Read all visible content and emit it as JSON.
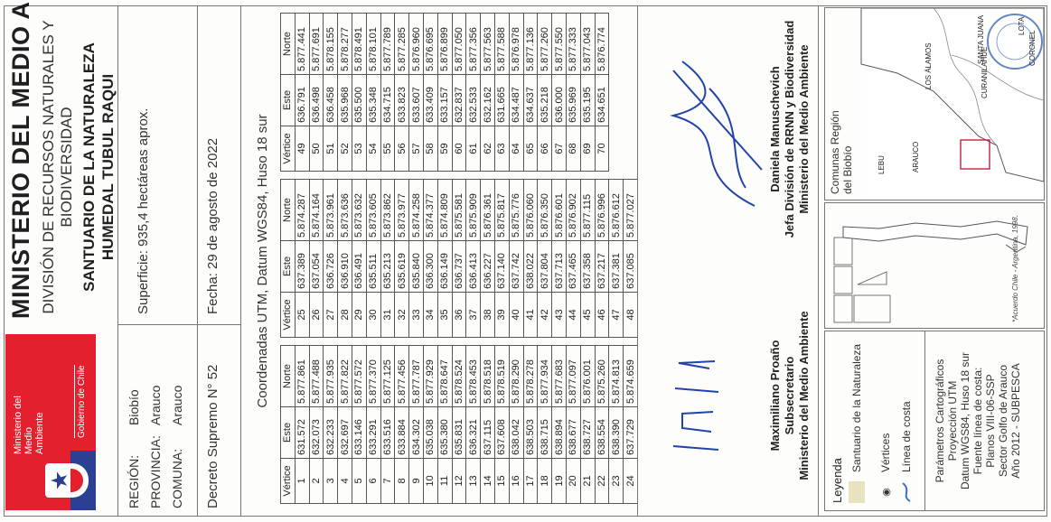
{
  "header": {
    "logo_name": "Ministerio del Medio Ambiente",
    "logo_gob": "Gobierno de Chile",
    "ministry": "MINISTERIO DEL MEDIO AMBIENTE",
    "division_line1": "DIVISIÓN DE RECURSOS NATURALES Y",
    "division_line2": "BIODIVERSIDAD",
    "sanctuary_line1": "SANTUARIO DE LA NATURALEZA",
    "sanctuary_line2": "HUMEDAL TUBUL RAQUI"
  },
  "info": {
    "region_label": "REGIÓN:",
    "region_value": "Biobío",
    "provincia_label": "PROVINCIA:",
    "provincia_value": "Arauco",
    "comuna_label": "COMUNA:",
    "comuna_value": "Arauco",
    "superficie": "Superficie: 935,4  hectáreas aprox.",
    "decreto": "Decreto Supremo N° 52",
    "fecha": "Fecha: 29 de agosto de 2022"
  },
  "coords_title": "Coordenadas UTM, Datum WGS84, Huso 18 sur",
  "table_headers": {
    "vertice": "Vértice",
    "este": "Este",
    "norte": "Norte"
  },
  "table1": [
    [
      "1",
      "631.572",
      "5.877.861"
    ],
    [
      "2",
      "632.073",
      "5.877.488"
    ],
    [
      "3",
      "632.233",
      "5.877.935"
    ],
    [
      "4",
      "632.697",
      "5.877.822"
    ],
    [
      "5",
      "633.146",
      "5.877.572"
    ],
    [
      "6",
      "633.291",
      "5.877.370"
    ],
    [
      "7",
      "633.516",
      "5.877.125"
    ],
    [
      "8",
      "633.884",
      "5.877.456"
    ],
    [
      "9",
      "634.302",
      "5.877.787"
    ],
    [
      "10",
      "635.038",
      "5.877.929"
    ],
    [
      "11",
      "635.380",
      "5.878.647"
    ],
    [
      "12",
      "635.831",
      "5.878.524"
    ],
    [
      "13",
      "636.321",
      "5.878.453"
    ],
    [
      "14",
      "637.115",
      "5.878.518"
    ],
    [
      "15",
      "637.608",
      "5.878.519"
    ],
    [
      "16",
      "638.042",
      "5.878.290"
    ],
    [
      "17",
      "638.503",
      "5.878.278"
    ],
    [
      "18",
      "638.715",
      "5.877.934"
    ],
    [
      "19",
      "638.894",
      "5.877.683"
    ],
    [
      "20",
      "638.677",
      "5.877.097"
    ],
    [
      "21",
      "638.727",
      "5.876.001"
    ],
    [
      "22",
      "638.554",
      "5.875.260"
    ],
    [
      "23",
      "638.390",
      "5.874.813"
    ],
    [
      "24",
      "637.729",
      "5.874.659"
    ]
  ],
  "table2": [
    [
      "25",
      "637.389",
      "5.874.287"
    ],
    [
      "26",
      "637.054",
      "5.874.164"
    ],
    [
      "27",
      "636.726",
      "5.873.961"
    ],
    [
      "28",
      "636.910",
      "5.873.636"
    ],
    [
      "29",
      "636.491",
      "5.873.632"
    ],
    [
      "30",
      "635.511",
      "5.873.605"
    ],
    [
      "31",
      "635.213",
      "5.873.862"
    ],
    [
      "32",
      "635.619",
      "5.873.977"
    ],
    [
      "33",
      "635.840",
      "5.874.258"
    ],
    [
      "34",
      "636.300",
      "5.874.377"
    ],
    [
      "35",
      "636.149",
      "5.874.809"
    ],
    [
      "36",
      "636.737",
      "5.875.581"
    ],
    [
      "37",
      "636.413",
      "5.875.909"
    ],
    [
      "38",
      "636.227",
      "5.876.361"
    ],
    [
      "39",
      "637.140",
      "5.875.817"
    ],
    [
      "40",
      "637.742",
      "5.875.776"
    ],
    [
      "41",
      "638.022",
      "5.876.060"
    ],
    [
      "42",
      "637.804",
      "5.876.350"
    ],
    [
      "43",
      "637.713",
      "5.876.601"
    ],
    [
      "44",
      "637.465",
      "5.876.902"
    ],
    [
      "45",
      "637.358",
      "5.877.115"
    ],
    [
      "46",
      "637.217",
      "5.876.996"
    ],
    [
      "47",
      "637.381",
      "5.876.612"
    ],
    [
      "48",
      "637.085",
      "5.877.027"
    ]
  ],
  "table3": [
    [
      "49",
      "636.791",
      "5.877.441"
    ],
    [
      "50",
      "636.498",
      "5.877.691"
    ],
    [
      "51",
      "636.458",
      "5.878.155"
    ],
    [
      "52",
      "635.968",
      "5.878.277"
    ],
    [
      "53",
      "635.500",
      "5.878.491"
    ],
    [
      "54",
      "635.348",
      "5.878.101"
    ],
    [
      "55",
      "634.715",
      "5.877.789"
    ],
    [
      "56",
      "633.823",
      "5.877.285"
    ],
    [
      "57",
      "633.607",
      "5.876.960"
    ],
    [
      "58",
      "633.409",
      "5.876.695"
    ],
    [
      "59",
      "633.157",
      "5.876.899"
    ],
    [
      "60",
      "632.837",
      "5.877.050"
    ],
    [
      "61",
      "632.533",
      "5.877.356"
    ],
    [
      "62",
      "632.162",
      "5.877.563"
    ],
    [
      "63",
      "631.665",
      "5.877.588"
    ],
    [
      "64",
      "634.487",
      "5.876.978"
    ],
    [
      "65",
      "634.637",
      "5.877.136"
    ],
    [
      "66",
      "635.218",
      "5.877.260"
    ],
    [
      "67",
      "636.000",
      "5.877.550"
    ],
    [
      "68",
      "635.969",
      "5.877.333"
    ],
    [
      "69",
      "635.195",
      "5.877.043"
    ],
    [
      "70",
      "634.651",
      "5.876.774"
    ]
  ],
  "signatures": {
    "left_name": "Maximiliano Proaño",
    "left_role": "Subsecretario",
    "left_org": "Ministerio del Medio Ambiente",
    "right_name": "Daniela Manuschevich",
    "right_role": "Jefa División de RRNN y Biodiversidad",
    "right_org": "Ministerio del Medio Ambiente"
  },
  "legend": {
    "title": "Leyenda",
    "item_santuario": "Santuario de la Naturaleza",
    "item_vertices": "Vértices",
    "item_linea": "Línea de costa",
    "params_1": "Parámetros Cartográficos",
    "params_2": "Proyección UTM",
    "params_3": "Datum WGS84, Huso 18 sur",
    "params_4": "Fuente línea de costa:",
    "params_5": "Planos VIII-06-SSP",
    "params_6": "Sector Golfo de Arauco",
    "params_7": "Año 2012 - SUBPESCA"
  },
  "inset": {
    "note": "*Acuerdo Chile - Argentina, 1998."
  },
  "region_map": {
    "title_1": "Comunas Región",
    "title_2": "del Biobío",
    "places": [
      "CORONEL",
      "LOTA",
      "SANTA JUANA",
      "CURANILAHUE",
      "LOS ÁLAMOS",
      "ARAUCO",
      "LEBU"
    ]
  },
  "colors": {
    "logo_red": "#e5202e",
    "logo_blue": "#2b3f93",
    "sanctuary_fill": "#e9e2bf",
    "area_box": "#c8213a",
    "stamp": "#2f5fb3"
  }
}
